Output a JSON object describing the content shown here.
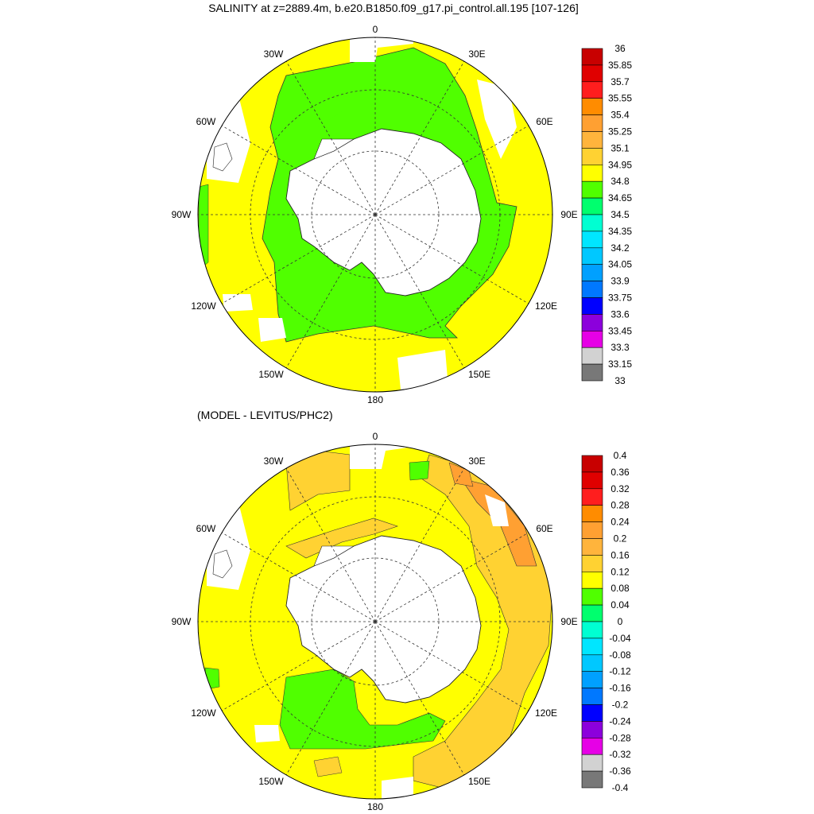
{
  "figure": {
    "title": "SALINITY at z=2889.4m, b.e20.B1850.f09_g17.pi_control.all.195 [107-126]",
    "subtitle": "(MODEL - LEVITUS/PHC2)"
  },
  "map": {
    "projection": "south-polar-stereographic",
    "boundary_latitude": -30,
    "longitude_labels": [
      "0",
      "30E",
      "60E",
      "90E",
      "120E",
      "150E",
      "180",
      "150W",
      "120W",
      "90W",
      "60W",
      "30W"
    ],
    "latitude_circles": [
      -40,
      -60,
      -80
    ]
  },
  "panels": [
    {
      "id": "salinity",
      "field": "salinity",
      "dominant_level": "34.8-34.95",
      "near_antarctic_level": "34.65-34.8",
      "colorbar": {
        "labels": [
          "36",
          "35.85",
          "35.7",
          "35.55",
          "35.4",
          "35.25",
          "35.1",
          "34.95",
          "34.8",
          "34.65",
          "34.5",
          "34.35",
          "34.2",
          "34.05",
          "33.9",
          "33.75",
          "33.6",
          "33.45",
          "33.3",
          "33.15",
          "33"
        ],
        "colors": [
          "#c80000",
          "#e00000",
          "#ff1e1e",
          "#ff8c00",
          "#ffa032",
          "#ffb43c",
          "#ffd232",
          "#ffff00",
          "#50ff00",
          "#00ff6e",
          "#00ffd2",
          "#00e6ff",
          "#00c8ff",
          "#00a0ff",
          "#0078ff",
          "#0000ff",
          "#8c00dc",
          "#e600e6",
          "#d2d2d2",
          "#787878"
        ]
      }
    },
    {
      "id": "difference",
      "field": "salinity difference",
      "dominant_level": "0.08-0.12",
      "colorbar": {
        "labels": [
          "0.4",
          "0.36",
          "0.32",
          "0.28",
          "0.24",
          "0.2",
          "0.16",
          "0.12",
          "0.08",
          "0.04",
          "0",
          "-0.04",
          "-0.08",
          "-0.12",
          "-0.16",
          "-0.2",
          "-0.24",
          "-0.28",
          "-0.32",
          "-0.36",
          "-0.4"
        ],
        "colors": [
          "#c80000",
          "#e00000",
          "#ff1e1e",
          "#ff8c00",
          "#ffa032",
          "#ffb43c",
          "#ffd232",
          "#ffff00",
          "#50ff00",
          "#00ff6e",
          "#00ffd2",
          "#00e6ff",
          "#00c8ff",
          "#00a0ff",
          "#0078ff",
          "#0000ff",
          "#8c00dc",
          "#e600e6",
          "#d2d2d2",
          "#787878"
        ]
      }
    }
  ]
}
